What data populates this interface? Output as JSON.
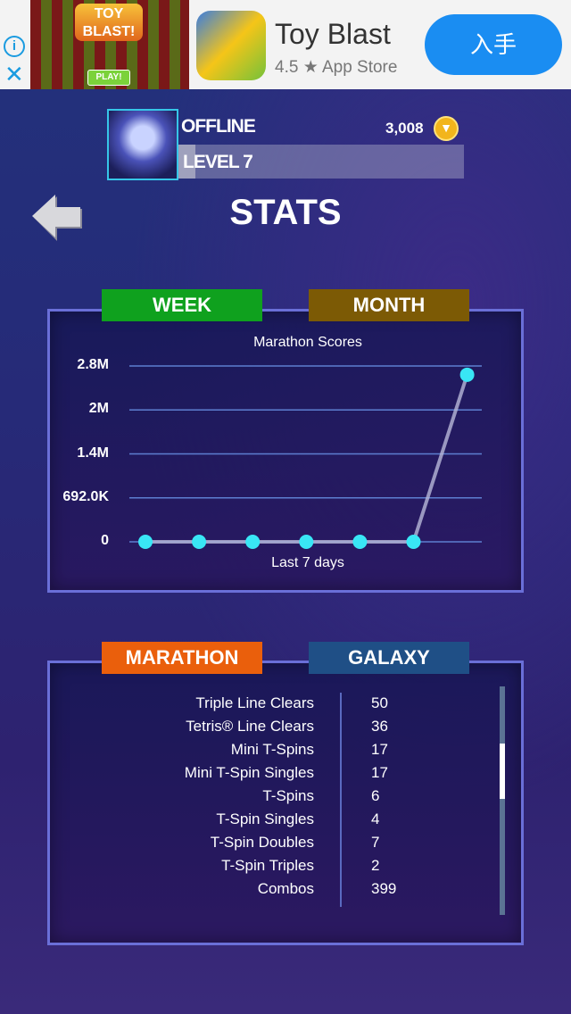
{
  "ad": {
    "banner_logo": "TOY BLAST!",
    "banner_play": "PLAY!",
    "title": "Toy Blast",
    "rating": "4.5 ★ App Store",
    "get_label": "入手",
    "info_icon": "info-icon",
    "close_icon": "close-icon"
  },
  "profile": {
    "status": "OFFLINE",
    "coins": "3,008",
    "coin_icon": "coin-icon",
    "level": "LEVEL 7",
    "level_progress_pct": 6
  },
  "page": {
    "title": "STATS",
    "back_icon": "back-arrow-icon"
  },
  "chart_tabs": [
    {
      "label": "WEEK",
      "color": "#0fa11e"
    },
    {
      "label": "MONTH",
      "color": "#7c5a05"
    }
  ],
  "chart_data": {
    "type": "line",
    "title": "Marathon Scores",
    "xlabel": "Last 7 days",
    "ylabel": "",
    "y_tick_labels": [
      "0",
      "692.0K",
      "1.4M",
      "2M",
      "2.8M"
    ],
    "y_ticks": [
      0,
      692000,
      1384000,
      2076000,
      2768000
    ],
    "ylim": [
      0,
      2768000
    ],
    "x": [
      1,
      2,
      3,
      4,
      5,
      6,
      7
    ],
    "values": [
      0,
      0,
      0,
      0,
      0,
      0,
      2630000
    ],
    "grid": true,
    "point_color": "#39e6f5",
    "line_color": "#b8b8d8"
  },
  "stats_tabs": [
    {
      "label": "MARATHON",
      "color": "#ea5f0c"
    },
    {
      "label": "GALAXY",
      "color": "#1f4f86"
    }
  ],
  "stats": [
    {
      "label": "Triple Line Clears",
      "value": "50"
    },
    {
      "label": "Tetris® Line Clears",
      "value": "36"
    },
    {
      "label": "Mini T-Spins",
      "value": "17"
    },
    {
      "label": "Mini T-Spin Singles",
      "value": "17"
    },
    {
      "label": "T-Spins",
      "value": "6"
    },
    {
      "label": "T-Spin Singles",
      "value": "4"
    },
    {
      "label": "T-Spin Doubles",
      "value": "7"
    },
    {
      "label": "T-Spin Triples",
      "value": "2"
    },
    {
      "label": "Combos",
      "value": "399"
    }
  ]
}
